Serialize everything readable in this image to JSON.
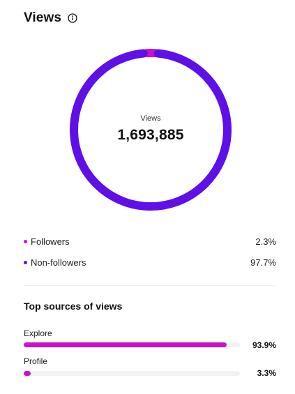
{
  "header": {
    "title": "Views",
    "info_icon": "info-icon"
  },
  "colors": {
    "followers": "#cc11cc",
    "non_followers": "#5f10e6",
    "track": "#f2f2f4"
  },
  "donut": {
    "label": "Views",
    "value": "1,693,885",
    "segments": [
      {
        "name": "Followers",
        "fraction": 0.023,
        "color": "#cc11cc"
      },
      {
        "name": "Non-followers",
        "fraction": 0.977,
        "color": "#5f10e6"
      }
    ]
  },
  "legend": [
    {
      "label": "Followers",
      "value": "2.3%",
      "color": "#cc11cc"
    },
    {
      "label": "Non-followers",
      "value": "97.7%",
      "color": "#5f10e6"
    }
  ],
  "sources": {
    "title": "Top sources of views",
    "items": [
      {
        "label": "Explore",
        "value": "93.9%",
        "fraction": 0.939,
        "color": "#cc11cc"
      },
      {
        "label": "Profile",
        "value": "3.3%",
        "fraction": 0.033,
        "color": "#cc11cc"
      }
    ]
  }
}
